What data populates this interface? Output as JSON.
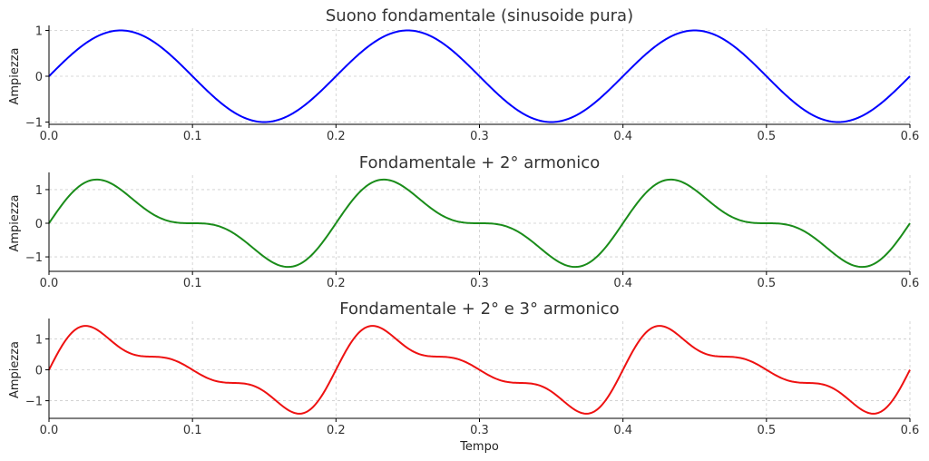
{
  "chart_data": [
    {
      "type": "line",
      "title": "Suono fondamentale (sinusoide pura)",
      "xlabel": "",
      "ylabel": "Ampiezza",
      "xlim": [
        0,
        0.6
      ],
      "ylim": [
        -1.05,
        1.05
      ],
      "xticks": [
        0.0,
        0.1,
        0.2,
        0.3,
        0.4,
        0.5,
        0.6
      ],
      "xtick_labels": [
        "0.0",
        "0.1",
        "0.2",
        "0.3",
        "0.4",
        "0.5",
        "0.6"
      ],
      "yticks": [
        -1,
        0,
        1
      ],
      "ytick_labels": [
        "−1",
        "0",
        "1"
      ],
      "grid": true,
      "series": [
        {
          "color": "#0000ff",
          "formula": "sin(2*pi*5*t)",
          "x": [
            0.0,
            0.025,
            0.05,
            0.075,
            0.1,
            0.125,
            0.15,
            0.175,
            0.2,
            0.225,
            0.25,
            0.275,
            0.3,
            0.325,
            0.35,
            0.375,
            0.4,
            0.425,
            0.45,
            0.475,
            0.5,
            0.525,
            0.55,
            0.575,
            0.6
          ],
          "y": [
            0.0,
            0.71,
            1.0,
            0.71,
            0.0,
            -0.71,
            -1.0,
            -0.71,
            0.0,
            0.71,
            1.0,
            0.71,
            0.0,
            -0.71,
            -1.0,
            -0.71,
            0.0,
            0.71,
            1.0,
            0.71,
            0.0,
            -0.71,
            -1.0,
            -0.71,
            0.0
          ]
        }
      ]
    },
    {
      "type": "line",
      "title": "Fondamentale + 2° armonico",
      "xlabel": "",
      "ylabel": "Ampiezza",
      "xlim": [
        0,
        0.6
      ],
      "ylim": [
        -1.43,
        1.43
      ],
      "xticks": [
        0.0,
        0.1,
        0.2,
        0.3,
        0.4,
        0.5,
        0.6
      ],
      "xtick_labels": [
        "0.0",
        "0.1",
        "0.2",
        "0.3",
        "0.4",
        "0.5",
        "0.6"
      ],
      "yticks": [
        -1,
        0,
        1
      ],
      "ytick_labels": [
        "−1",
        "0",
        "1"
      ],
      "grid": true,
      "series": [
        {
          "color": "#1a8c1a",
          "formula": "sin(2*pi*5*t) + 0.5*sin(2*pi*10*t)",
          "x": [
            0.0,
            0.025,
            0.05,
            0.075,
            0.1,
            0.125,
            0.15,
            0.175,
            0.2,
            0.225,
            0.25,
            0.275,
            0.3,
            0.325,
            0.35,
            0.375,
            0.4,
            0.425,
            0.45,
            0.475,
            0.5,
            0.525,
            0.55,
            0.575,
            0.6
          ],
          "y": [
            0.0,
            1.21,
            1.0,
            0.21,
            0.0,
            -0.21,
            -1.0,
            -1.21,
            0.0,
            1.21,
            1.0,
            0.21,
            0.0,
            -0.21,
            -1.0,
            -1.21,
            0.0,
            1.21,
            1.0,
            0.21,
            0.0,
            -0.21,
            -1.0,
            -1.21,
            0.0
          ]
        }
      ]
    },
    {
      "type": "line",
      "title": "Fondamentale + 2° e 3° armonico",
      "xlabel": "Tempo",
      "ylabel": "Ampiezza",
      "xlim": [
        0,
        0.6
      ],
      "ylim": [
        -1.57,
        1.57
      ],
      "xticks": [
        0.0,
        0.1,
        0.2,
        0.3,
        0.4,
        0.5,
        0.6
      ],
      "xtick_labels": [
        "0.0",
        "0.1",
        "0.2",
        "0.3",
        "0.4",
        "0.5",
        "0.6"
      ],
      "yticks": [
        -1,
        0,
        1
      ],
      "ytick_labels": [
        "−1",
        "0",
        "1"
      ],
      "grid": true,
      "series": [
        {
          "color": "#ee1111",
          "formula": "sin(2*pi*5*t) + 0.5*sin(2*pi*10*t) + 0.3*sin(2*pi*15*t)",
          "x": [
            0.0,
            0.025,
            0.05,
            0.075,
            0.1,
            0.125,
            0.15,
            0.175,
            0.2,
            0.225,
            0.25,
            0.275,
            0.3,
            0.325,
            0.35,
            0.375,
            0.4,
            0.425,
            0.45,
            0.475,
            0.5,
            0.525,
            0.55,
            0.575,
            0.6
          ],
          "y": [
            0.0,
            1.42,
            0.7,
            0.42,
            0.0,
            -0.42,
            -0.7,
            -1.42,
            0.0,
            1.42,
            0.7,
            0.42,
            0.0,
            -0.42,
            -0.7,
            -1.42,
            0.0,
            1.42,
            0.7,
            0.42,
            0.0,
            -0.42,
            -0.7,
            -1.42,
            0.0
          ]
        }
      ]
    }
  ]
}
